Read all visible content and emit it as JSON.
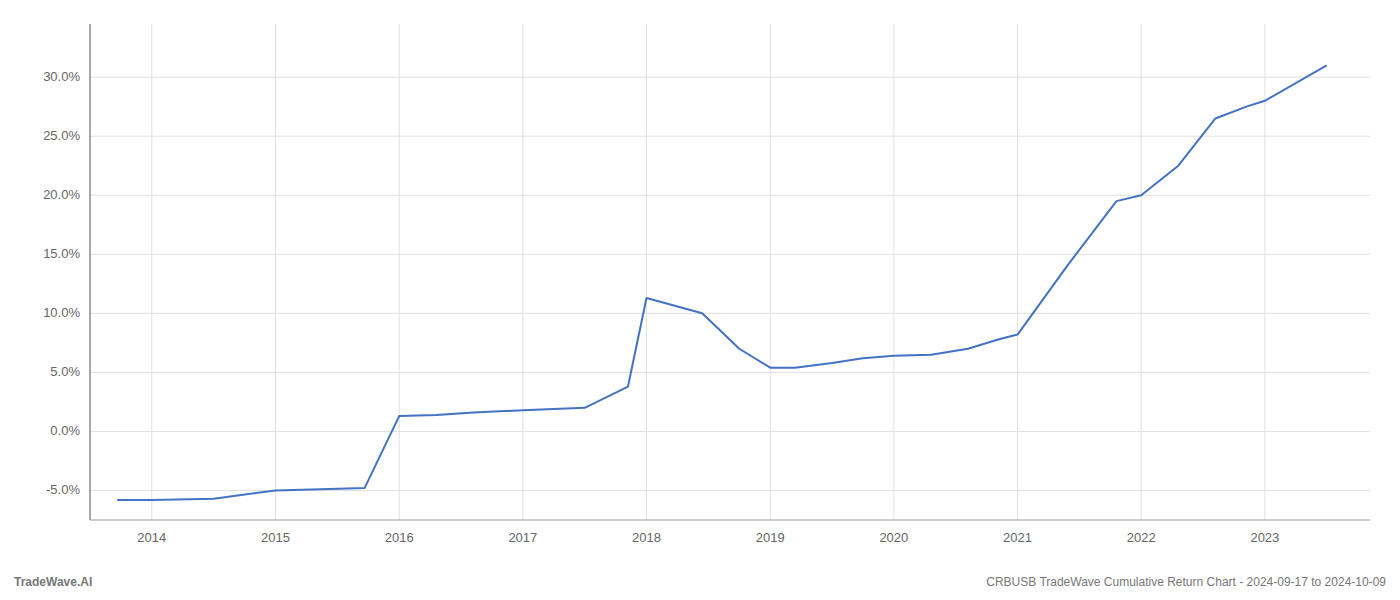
{
  "chart_data": {
    "type": "line",
    "x": [
      2013.72,
      2014.0,
      2014.5,
      2015.0,
      2015.72,
      2016.0,
      2016.3,
      2016.6,
      2017.0,
      2017.5,
      2017.85,
      2018.0,
      2018.45,
      2018.75,
      2019.0,
      2019.2,
      2019.5,
      2019.75,
      2020.0,
      2020.3,
      2020.6,
      2020.85,
      2021.0,
      2021.4,
      2021.8,
      2022.0,
      2022.3,
      2022.6,
      2022.85,
      2023.0,
      2023.5
    ],
    "values": [
      -0.058,
      -0.058,
      -0.057,
      -0.05,
      -0.048,
      0.013,
      0.014,
      0.016,
      0.018,
      0.02,
      0.038,
      0.113,
      0.1,
      0.07,
      0.054,
      0.054,
      0.058,
      0.062,
      0.064,
      0.065,
      0.07,
      0.078,
      0.082,
      0.14,
      0.195,
      0.2,
      0.225,
      0.265,
      0.275,
      0.28,
      0.31
    ],
    "color": "#4472c4",
    "xlim": [
      2013.5,
      2023.85
    ],
    "xticks": [
      2014,
      2015,
      2016,
      2017,
      2018,
      2019,
      2020,
      2021,
      2022,
      2023
    ],
    "ylim": [
      -0.075,
      0.345
    ],
    "yticks": [
      {
        "value": -0.05,
        "label": "-5.0%"
      },
      {
        "value": 0.0,
        "label": "0.0%"
      },
      {
        "value": 0.05,
        "label": "5.0%"
      },
      {
        "value": 0.1,
        "label": "10.0%"
      },
      {
        "value": 0.15,
        "label": "15.0%"
      },
      {
        "value": 0.2,
        "label": "20.0%"
      },
      {
        "value": 0.25,
        "label": "25.0%"
      },
      {
        "value": 0.3,
        "label": "30.0%"
      }
    ],
    "grid": true,
    "annotations": [
      "TradeWave.AI",
      "CRBUSB TradeWave Cumulative Return Chart - 2024-09-17 to 2024-10-09"
    ]
  }
}
